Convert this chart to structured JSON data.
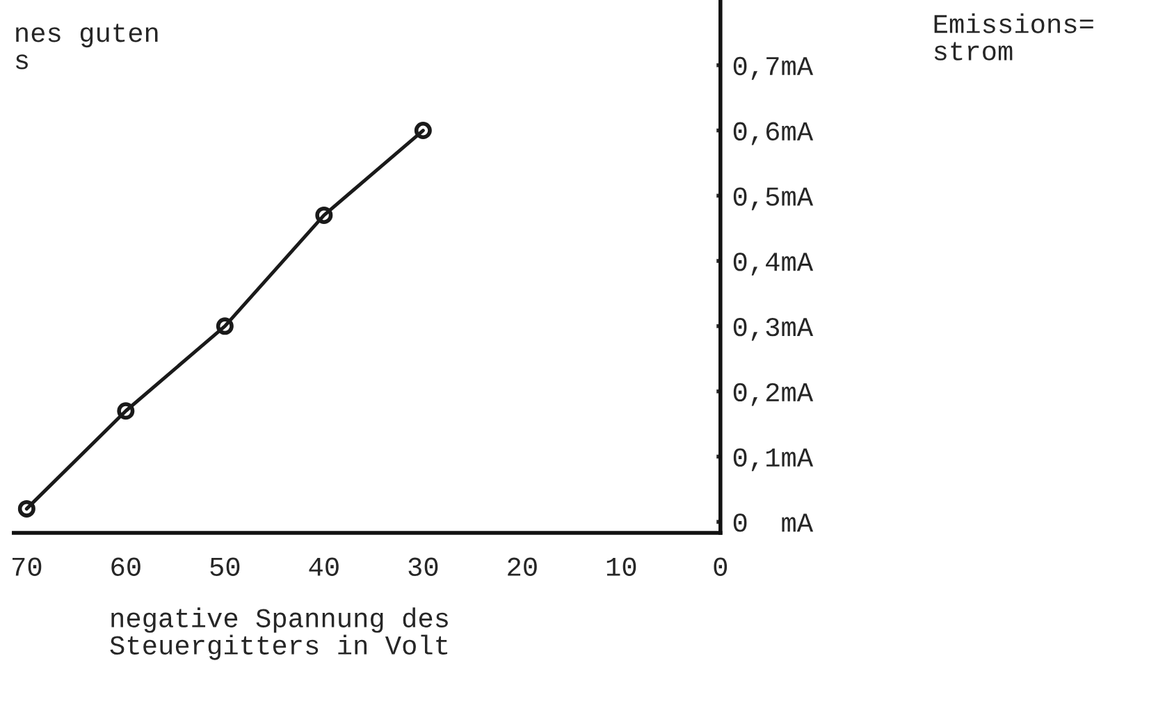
{
  "chart_data": {
    "type": "line",
    "x": [
      70,
      60,
      50,
      40,
      30
    ],
    "series": [
      {
        "color": "#1a1a1a",
        "values": [
          0.02,
          0.17,
          0.3,
          0.47,
          0.6
        ]
      }
    ],
    "xlabel": "negative Spannung des\nSteuergitters in Volt",
    "ylabel": "Emissions=\nstrom",
    "annotations": [
      "nes guten\ns"
    ],
    "xlim": [
      71.3,
      0
    ],
    "ylim": [
      -0.017,
      0.8
    ],
    "xticks": [
      70,
      60,
      50,
      40,
      30,
      20,
      10,
      0
    ],
    "yticks": [
      {
        "value": 0,
        "label": "0  mA"
      },
      {
        "value": 0.1,
        "label": "0,1mA"
      },
      {
        "value": 0.2,
        "label": "0,2mA"
      },
      {
        "value": 0.3,
        "label": "0,3mA"
      },
      {
        "value": 0.4,
        "label": "0,4mA"
      },
      {
        "value": 0.5,
        "label": "0,5mA"
      },
      {
        "value": 0.6,
        "label": "0,6mA"
      },
      {
        "value": 0.7,
        "label": "0,7mA"
      }
    ],
    "marker": "circle",
    "line_style": "solid",
    "grid": false,
    "legend": false
  }
}
